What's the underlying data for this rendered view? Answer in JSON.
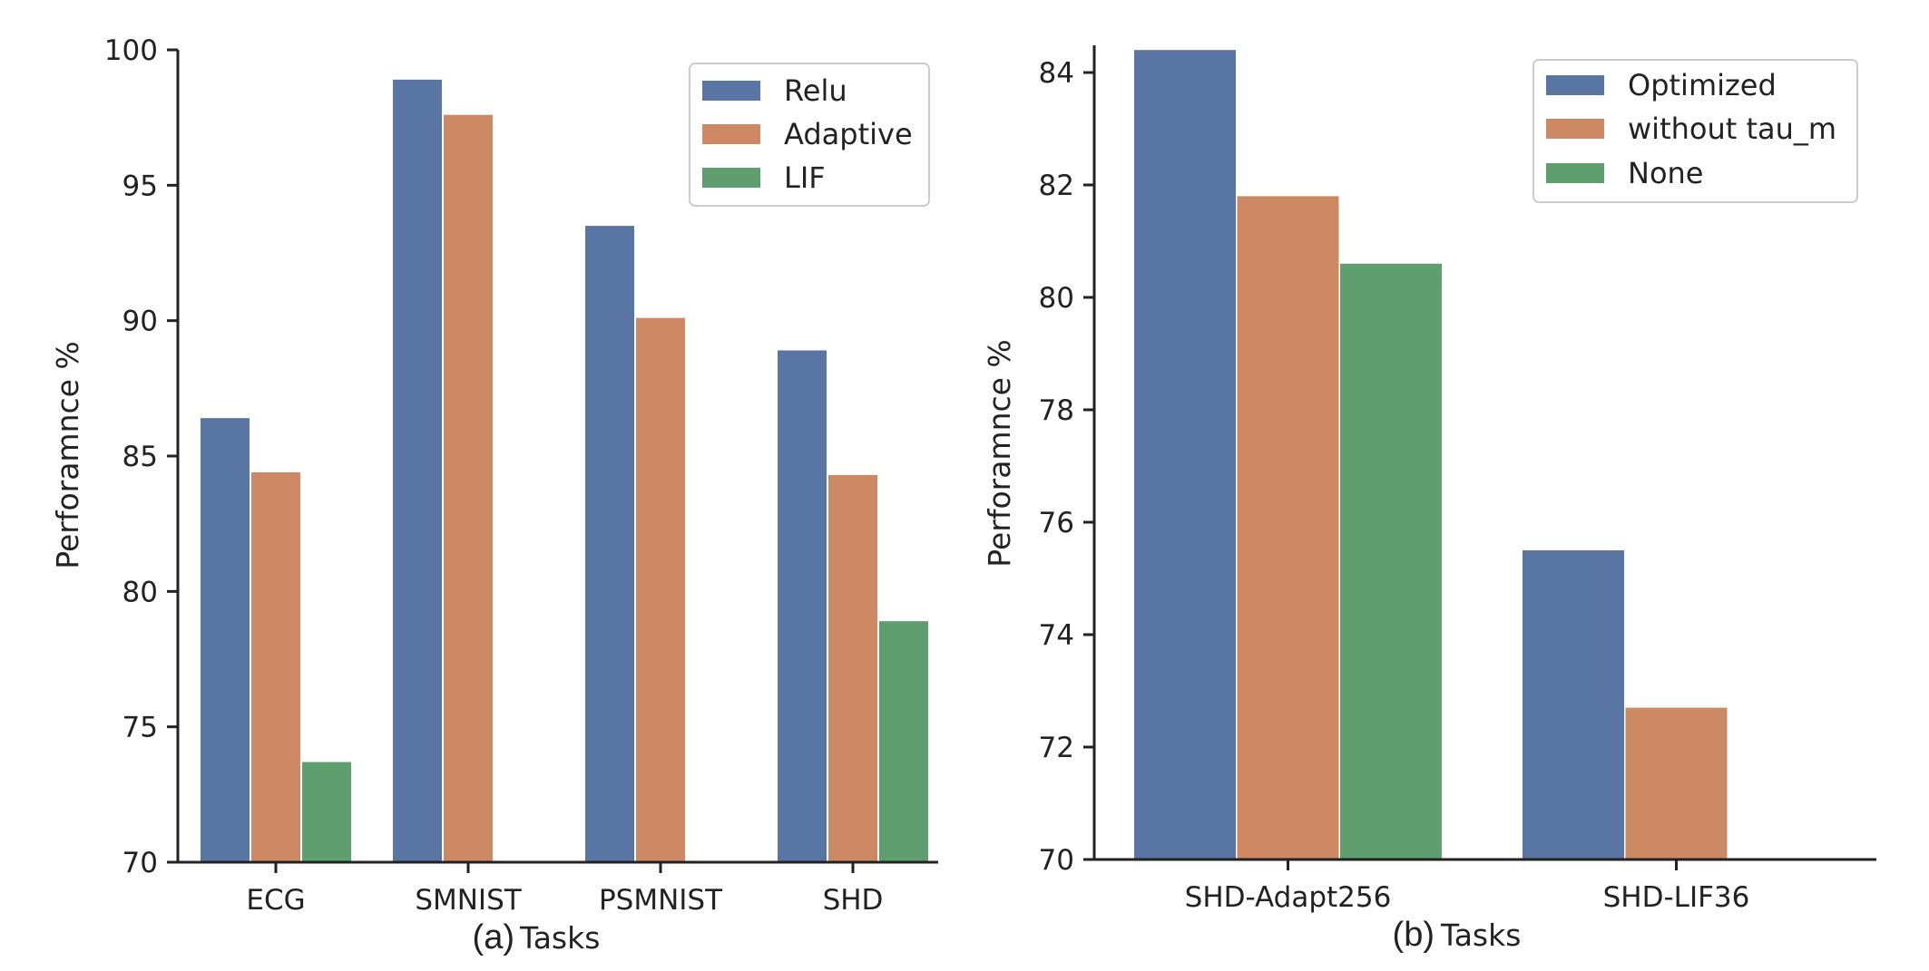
{
  "chart_data": [
    {
      "type": "bar",
      "panel_label": "(a)",
      "xlabel": "Tasks",
      "ylabel": "Perforamnce %",
      "ylim": [
        70,
        100
      ],
      "yticks": [
        "70",
        "75",
        "80",
        "85",
        "90",
        "95",
        "100"
      ],
      "categories": [
        "ECG",
        "SMNIST",
        "PSMNIST",
        "SHD"
      ],
      "legend_position": "top-right",
      "series": [
        {
          "name": "Relu",
          "color": "#5875a4",
          "values": [
            86.4,
            98.9,
            93.5,
            88.9
          ]
        },
        {
          "name": "Adaptive",
          "color": "#cc8963",
          "values": [
            84.4,
            97.6,
            90.1,
            84.3
          ]
        },
        {
          "name": "LIF",
          "color": "#5f9e6e",
          "values": [
            73.7,
            null,
            null,
            78.9
          ]
        }
      ]
    },
    {
      "type": "bar",
      "panel_label": "(b)",
      "xlabel": "Tasks",
      "ylabel": "Perforamnce %",
      "ylim": [
        70,
        85
      ],
      "yticks": [
        "70",
        "72",
        "74",
        "76",
        "78",
        "80",
        "82",
        "84"
      ],
      "categories": [
        "SHD-Adapt256",
        "SHD-LIF36"
      ],
      "legend_position": "top-right",
      "series": [
        {
          "name": "Optimized",
          "color": "#5875a4",
          "values": [
            84.4,
            75.5
          ]
        },
        {
          "name": "without tau_m",
          "color": "#cc8963",
          "values": [
            81.8,
            72.7
          ]
        },
        {
          "name": "None",
          "color": "#5f9e6e",
          "values": [
            80.6,
            null
          ]
        }
      ]
    }
  ]
}
